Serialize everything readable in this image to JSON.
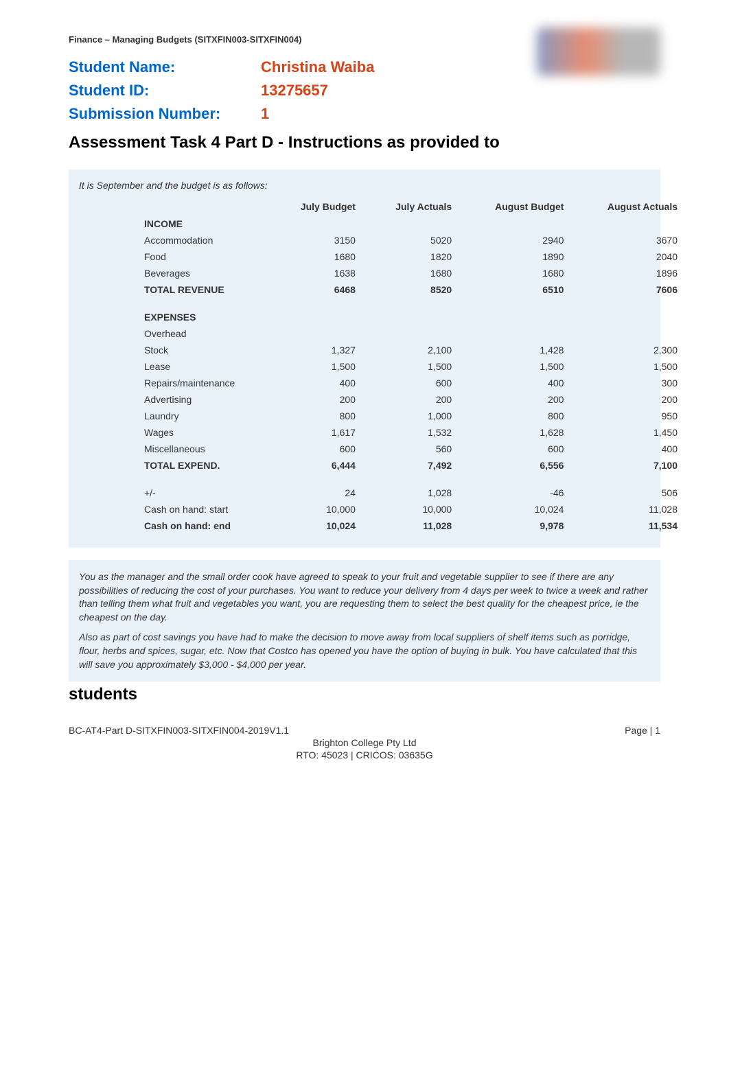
{
  "header": {
    "course_text": "Finance – Managing Budgets (SITXFIN003-SITXFIN004)"
  },
  "student_info": {
    "name_label": "Student Name:",
    "name_value": "Christina Waiba",
    "id_label": "Student ID:",
    "id_value": "13275657",
    "submission_label": "Submission Number:",
    "submission_value": "1"
  },
  "section_heading": "Assessment Task 4 Part D - Instructions as provided to",
  "budget": {
    "intro": "It is September and the budget is as follows:",
    "columns": [
      "",
      "July Budget",
      "July Actuals",
      "August Budget",
      "August Actuals"
    ],
    "income_header": "INCOME",
    "income_rows": [
      {
        "label": "Accommodation",
        "values": [
          "3150",
          "5020",
          "2940",
          "3670"
        ]
      },
      {
        "label": "Food",
        "values": [
          "1680",
          "1820",
          "1890",
          "2040"
        ]
      },
      {
        "label": "Beverages",
        "values": [
          "1638",
          "1680",
          "1680",
          "1896"
        ]
      }
    ],
    "total_revenue": {
      "label": "TOTAL REVENUE",
      "values": [
        "6468",
        "8520",
        "6510",
        "7606"
      ]
    },
    "expenses_header": "EXPENSES",
    "overhead_label": "Overhead",
    "expense_rows": [
      {
        "label": "Stock",
        "values": [
          "1,327",
          "2,100",
          "1,428",
          "2,300"
        ]
      },
      {
        "label": "Lease",
        "values": [
          "1,500",
          "1,500",
          "1,500",
          "1,500"
        ]
      },
      {
        "label": "Repairs/maintenance",
        "values": [
          "400",
          "600",
          "400",
          "300"
        ]
      },
      {
        "label": "Advertising",
        "values": [
          "200",
          "200",
          "200",
          "200"
        ]
      },
      {
        "label": "Laundry",
        "values": [
          "800",
          "1,000",
          "800",
          "950"
        ]
      },
      {
        "label": "Wages",
        "values": [
          "1,617",
          "1,532",
          "1,628",
          "1,450"
        ]
      },
      {
        "label": "Miscellaneous",
        "values": [
          "600",
          "560",
          "600",
          "400"
        ]
      }
    ],
    "total_expend": {
      "label": "TOTAL EXPEND.",
      "values": [
        "6,444",
        "7,492",
        "6,556",
        "7,100"
      ]
    },
    "plus_minus": {
      "label": "+/-",
      "values": [
        "24",
        "1,028",
        "-46",
        "506"
      ],
      "negative_index": 2
    },
    "cash_start": {
      "label": "Cash on hand: start",
      "values": [
        "10,000",
        "10,000",
        "10,024",
        "11,028"
      ]
    },
    "cash_end": {
      "label": "Cash on hand: end",
      "values": [
        "10,024",
        "11,028",
        "9,978",
        "11,534"
      ]
    }
  },
  "narrative": {
    "paragraph1": "You as the manager and the small order cook have agreed to speak to your fruit and vegetable supplier to see if there are any possibilities of reducing the cost of your purchases. You want to reduce your delivery from 4 days per week to twice a week and rather than telling them what fruit and vegetables you want, you are requesting them to select the best quality for the cheapest price, ie the cheapest on the day.",
    "paragraph2": "Also as part of cost savings you have had to make the decision to move away from local suppliers of shelf items such as porridge, flour, herbs and spices, sugar, etc. Now that Costco has opened you have the option of buying in bulk. You have calculated that this will save you approximately $3,000 - $4,000 per year."
  },
  "students_heading": "students",
  "footer": {
    "doc_id": "BC-AT4-Part D-SITXFIN003-SITXFIN004-2019V1.1",
    "page": "Page | 1",
    "company": "Brighton College Pty Ltd",
    "rto": "RTO: 45023 | CRICOS: 03635G"
  }
}
